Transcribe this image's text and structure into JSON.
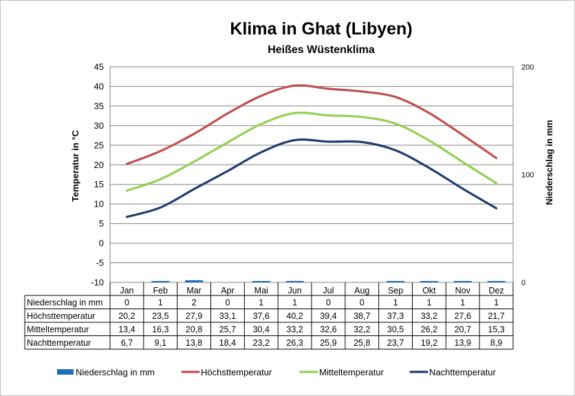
{
  "chart_data": {
    "type": "line",
    "title": "Klima in Ghat (Libyen)",
    "subtitle": "Heißes Wüstenklima",
    "ylabel": "Temperatur in °C",
    "y2label": "Niederschlag in mm",
    "ylim": [
      -10,
      45
    ],
    "yticks": [
      45,
      40,
      35,
      30,
      25,
      20,
      15,
      10,
      5,
      0,
      -5,
      -10
    ],
    "y2lim": [
      0,
      200
    ],
    "y2ticks": [
      200,
      100,
      0
    ],
    "grid": true,
    "legend_position": "bottom",
    "categories": [
      "Jan",
      "Feb",
      "Mar",
      "Apr",
      "Mai",
      "Jun",
      "Jul",
      "Aug",
      "Sep",
      "Okt",
      "Nov",
      "Dez"
    ],
    "series": [
      {
        "name": "Niederschlag in mm",
        "kind": "bar",
        "axis": "secondary",
        "color": "#1f6fb8",
        "values": [
          0,
          1,
          2,
          0,
          1,
          1,
          0,
          0,
          1,
          1,
          1,
          1
        ],
        "labels": [
          "0",
          "1",
          "2",
          "0",
          "1",
          "1",
          "0",
          "0",
          "1",
          "1",
          "1",
          "1"
        ]
      },
      {
        "name": "Höchsttemperatur",
        "kind": "line",
        "axis": "primary",
        "color": "#c0504d",
        "values": [
          20.2,
          23.5,
          27.9,
          33.1,
          37.6,
          40.2,
          39.4,
          38.7,
          37.3,
          33.2,
          27.6,
          21.7
        ],
        "labels": [
          "20,2",
          "23,5",
          "27,9",
          "33,1",
          "37,6",
          "40,2",
          "39,4",
          "38,7",
          "37,3",
          "33,2",
          "27,6",
          "21,7"
        ]
      },
      {
        "name": "Mitteltemperatur",
        "kind": "line",
        "axis": "primary",
        "color": "#92d050",
        "values": [
          13.4,
          16.3,
          20.8,
          25.7,
          30.4,
          33.2,
          32.6,
          32.2,
          30.5,
          26.2,
          20.7,
          15.3
        ],
        "labels": [
          "13,4",
          "16,3",
          "20,8",
          "25,7",
          "30,4",
          "33,2",
          "32,6",
          "32,2",
          "30,5",
          "26,2",
          "20,7",
          "15,3"
        ]
      },
      {
        "name": "Nachttemperatur",
        "kind": "line",
        "axis": "primary",
        "color": "#1f3d6e",
        "values": [
          6.7,
          9.1,
          13.8,
          18.4,
          23.2,
          26.3,
          25.9,
          25.8,
          23.7,
          19.2,
          13.9,
          8.9
        ],
        "labels": [
          "6,7",
          "9,1",
          "13,8",
          "18,4",
          "23,2",
          "26,3",
          "25,9",
          "25,8",
          "23,7",
          "19,2",
          "13,9",
          "8,9"
        ]
      }
    ]
  }
}
